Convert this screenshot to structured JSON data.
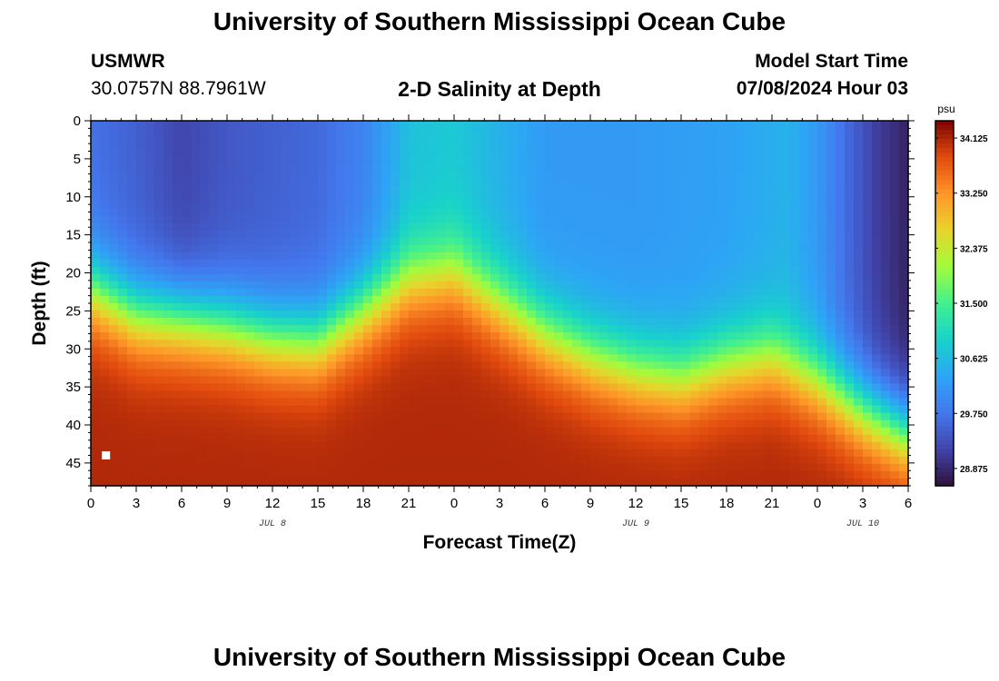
{
  "header": {
    "title": "University of Southern Mississippi Ocean Cube",
    "station": "USMWR",
    "coords": "30.0757N  88.7961W",
    "plot_title": "2-D Salinity at Depth",
    "model_label": "Model Start Time",
    "model_time": "07/08/2024 Hour 03"
  },
  "footer": {
    "title": "University of Southern Mississippi Ocean Cube"
  },
  "chart_data": {
    "type": "heatmap",
    "title": "2-D Salinity at Depth",
    "xlabel": "Forecast Time(Z)",
    "ylabel": "Depth (ft)",
    "x_ticks": [
      "0",
      "3",
      "6",
      "9",
      "12",
      "15",
      "18",
      "21",
      "0",
      "3",
      "6",
      "9",
      "12",
      "15",
      "18",
      "21",
      "0",
      "3",
      "6"
    ],
    "x_day_labels": [
      {
        "label": "JUL 8",
        "at_hour": 12
      },
      {
        "label": "JUL 9",
        "at_hour": 36
      },
      {
        "label": "JUL 10",
        "at_hour": 51
      }
    ],
    "x_range_hours": [
      0,
      54
    ],
    "y_ticks": [
      0,
      5,
      10,
      15,
      20,
      25,
      30,
      35,
      40,
      45
    ],
    "ylim": [
      0,
      48
    ],
    "colorbar": {
      "unit": "psu",
      "ticks": [
        "34.125",
        "33.250",
        "32.375",
        "31.500",
        "30.625",
        "29.750",
        "28.875"
      ],
      "range": [
        28.6,
        34.4
      ]
    },
    "halocline_depth_ft": [
      {
        "hour": 0,
        "depth": 22
      },
      {
        "hour": 3,
        "depth": 25.5
      },
      {
        "hour": 6,
        "depth": 26
      },
      {
        "hour": 9,
        "depth": 27
      },
      {
        "hour": 12,
        "depth": 28.5
      },
      {
        "hour": 15,
        "depth": 29
      },
      {
        "hour": 18,
        "depth": 25
      },
      {
        "hour": 21,
        "depth": 21
      },
      {
        "hour": 24,
        "depth": 20
      },
      {
        "hour": 27,
        "depth": 24
      },
      {
        "hour": 30,
        "depth": 28
      },
      {
        "hour": 33,
        "depth": 31
      },
      {
        "hour": 36,
        "depth": 33
      },
      {
        "hour": 39,
        "depth": 34
      },
      {
        "hour": 42,
        "depth": 32
      },
      {
        "hour": 45,
        "depth": 31
      },
      {
        "hour": 48,
        "depth": 34
      },
      {
        "hour": 51,
        "depth": 38
      },
      {
        "hour": 54,
        "depth": 41
      }
    ],
    "surface_salinity_psu": [
      {
        "hour": 0,
        "psu": 29.7
      },
      {
        "hour": 3,
        "psu": 29.5
      },
      {
        "hour": 6,
        "psu": 29.2
      },
      {
        "hour": 9,
        "psu": 29.4
      },
      {
        "hour": 12,
        "psu": 29.5
      },
      {
        "hour": 15,
        "psu": 29.6
      },
      {
        "hour": 18,
        "psu": 29.9
      },
      {
        "hour": 20,
        "psu": 30.4
      },
      {
        "hour": 21,
        "psu": 30.7
      },
      {
        "hour": 24,
        "psu": 30.8
      },
      {
        "hour": 27,
        "psu": 30.5
      },
      {
        "hour": 30,
        "psu": 30.2
      },
      {
        "hour": 36,
        "psu": 30.2
      },
      {
        "hour": 42,
        "psu": 30.3
      },
      {
        "hour": 46,
        "psu": 30.5
      },
      {
        "hour": 48,
        "psu": 30.2
      },
      {
        "hour": 50,
        "psu": 29.6
      },
      {
        "hour": 52,
        "psu": 29.1
      },
      {
        "hour": 54,
        "psu": 28.8
      }
    ],
    "bottom_salinity_psu": 34.1,
    "marker": {
      "hour": 1,
      "depth": 44,
      "shape": "white square"
    }
  }
}
